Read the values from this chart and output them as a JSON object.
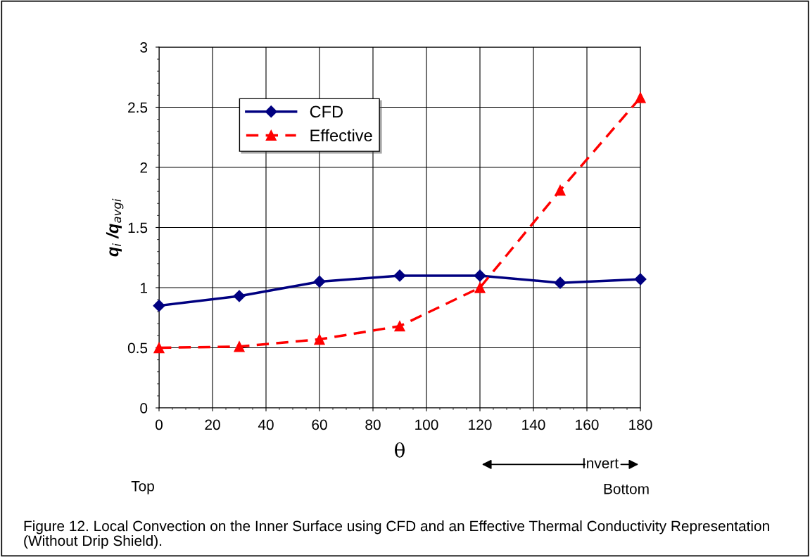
{
  "chart_data": {
    "type": "line",
    "xlabel": "θ",
    "ylabel": "q$_{ i}$ /q$_{avgi}$",
    "x": [
      0,
      30,
      60,
      90,
      120,
      150,
      180
    ],
    "series": [
      {
        "name": "CFD",
        "color": "#000080",
        "values": [
          0.85,
          0.93,
          1.05,
          1.1,
          1.1,
          1.04,
          1.07
        ],
        "marker": "diamond",
        "line_style": "solid"
      },
      {
        "name": "Effective",
        "color": "#ff0000",
        "values": [
          0.5,
          0.51,
          0.57,
          0.68,
          1.0,
          1.81,
          2.58
        ],
        "marker": "triangle",
        "line_style": "dashed"
      }
    ],
    "xlim": [
      0,
      180
    ],
    "xticks": [
      0,
      20,
      40,
      60,
      80,
      100,
      120,
      140,
      160,
      180
    ],
    "ylim": [
      0,
      3
    ],
    "yticks": [
      0,
      0.5,
      1,
      1.5,
      2,
      2.5,
      3
    ],
    "grid": true,
    "legend": "top left",
    "annotations": [
      "Top",
      "Invert",
      "Bottom",
      "Figure 12. Local Convection on the Inner Surface using CFD and an Effective Thermal Conductivity Representation (Without Drip Shield)."
    ]
  }
}
